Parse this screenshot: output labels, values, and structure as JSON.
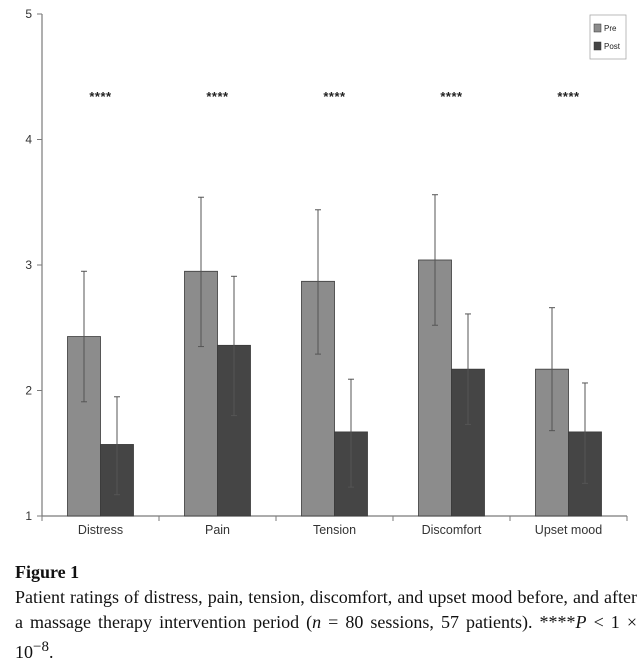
{
  "chart_data": {
    "type": "bar",
    "categories": [
      "Distress",
      "Pain",
      "Tension",
      "Discomfort",
      "Upset mood"
    ],
    "series": [
      {
        "name": "Pre",
        "values": [
          2.43,
          2.95,
          2.87,
          3.04,
          2.17
        ],
        "err_low": [
          1.91,
          2.35,
          2.29,
          2.52,
          1.68
        ],
        "err_high": [
          2.95,
          3.54,
          3.44,
          3.56,
          2.66
        ]
      },
      {
        "name": "Post",
        "values": [
          1.57,
          2.36,
          1.67,
          2.17,
          1.67
        ],
        "err_low": [
          1.17,
          1.8,
          1.23,
          1.73,
          1.26
        ],
        "err_high": [
          1.95,
          2.91,
          2.09,
          2.61,
          2.06
        ]
      }
    ],
    "annotations": [
      "****",
      "****",
      "****",
      "****",
      "****"
    ],
    "ylim": [
      1,
      5
    ],
    "yticks": [
      "1",
      "2",
      "3",
      "4",
      "5"
    ],
    "legend_position": "top-right",
    "grid": false,
    "colors": {
      "pre": "#8c8c8c",
      "post": "#454545",
      "axis": "#7a7a7a",
      "error_bar": "#555555"
    }
  },
  "caption": {
    "title": "Figure 1",
    "text_part1": "Patient ratings of distress, pain, tension, discomfort, and upset mood before, and after a massage therapy intervention period (",
    "n_var": "n",
    "text_part2": " = 80 sessions, 57 patients). ****",
    "p_var": "P",
    "text_part3": " < 1 × 10",
    "exponent": "−8",
    "text_part4": "."
  }
}
